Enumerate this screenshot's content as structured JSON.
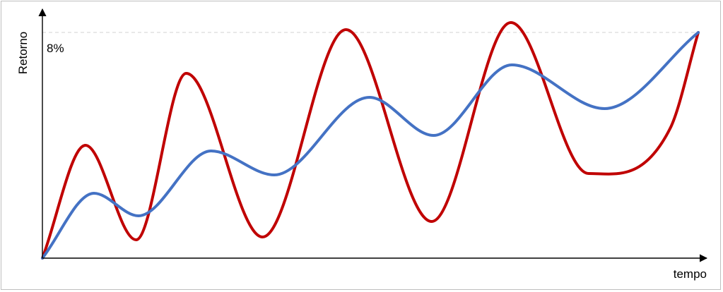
{
  "chart_data": {
    "type": "line",
    "title": "",
    "xlabel": "tempo",
    "ylabel": "Retorno",
    "reference_label": "8%",
    "reference_value": 8,
    "xlim": [
      0,
      14
    ],
    "ylim": [
      0,
      8
    ],
    "grid": false,
    "legend": "none",
    "series": [
      {
        "color": "#c00000",
        "x": [
          0,
          0.92,
          2,
          3.07,
          4.7,
          6.48,
          8.31,
          10,
          11.66,
          13.4,
          14
        ],
        "values": [
          0,
          4.0,
          0.65,
          6.55,
          0.75,
          8.1,
          1.3,
          8.35,
          3.0,
          4.6,
          8.0
        ]
      },
      {
        "color": "#4472c4",
        "x": [
          0,
          1.1,
          2.05,
          3.6,
          4.95,
          6.98,
          8.35,
          10.02,
          12.0,
          14
        ],
        "values": [
          0,
          2.3,
          1.5,
          3.8,
          2.95,
          5.7,
          4.35,
          6.85,
          5.3,
          8.0
        ]
      }
    ]
  }
}
